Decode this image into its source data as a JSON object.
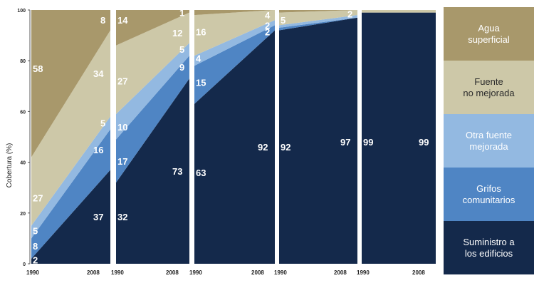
{
  "chart_data": {
    "type": "area",
    "stacked": true,
    "ylabel": "Cobertura (%)",
    "ylim": [
      0,
      100
    ],
    "yticks": [
      "0",
      "20",
      "40",
      "60",
      "80",
      "100"
    ],
    "panels": [
      {
        "x": [
          "1990",
          "2008"
        ],
        "series": {
          "edificios": [
            2,
            37
          ],
          "grifos": [
            8,
            16
          ],
          "otra": [
            5,
            5
          ],
          "no_mejorada": [
            27,
            34
          ],
          "superficial": [
            58,
            8
          ]
        }
      },
      {
        "x": [
          "1990",
          "2008"
        ],
        "series": {
          "edificios": [
            32,
            73
          ],
          "grifos": [
            17,
            9
          ],
          "otra": [
            10,
            5
          ],
          "no_mejorada": [
            27,
            12
          ],
          "superficial": [
            14,
            1
          ]
        }
      },
      {
        "x": [
          "1990",
          "2008"
        ],
        "series": {
          "edificios": [
            63,
            92
          ],
          "grifos": [
            15,
            2
          ],
          "otra": [
            4,
            2
          ],
          "no_mejorada": [
            16,
            4
          ],
          "superficial": [
            2,
            0
          ]
        }
      },
      {
        "x": [
          "1990",
          "2008"
        ],
        "series": {
          "edificios": [
            92,
            97
          ],
          "grifos": [
            1,
            0
          ],
          "otra": [
            1,
            1
          ],
          "no_mejorada": [
            5,
            2
          ],
          "superficial": [
            1,
            0
          ]
        }
      },
      {
        "x": [
          "1990",
          "2008"
        ],
        "series": {
          "edificios": [
            99,
            99
          ],
          "grifos": [
            0,
            0
          ],
          "otra": [
            0,
            0
          ],
          "no_mejorada": [
            1,
            1
          ],
          "superficial": [
            0,
            0
          ]
        }
      }
    ],
    "labels": [
      {
        "panel": 0,
        "side": "start",
        "value": "2",
        "y": 1.5
      },
      {
        "panel": 0,
        "side": "start",
        "value": "8",
        "y": 7
      },
      {
        "panel": 0,
        "side": "start",
        "value": "5",
        "y": 13
      },
      {
        "panel": 0,
        "side": "start",
        "value": "27",
        "y": 26
      },
      {
        "panel": 0,
        "side": "start",
        "value": "58",
        "y": 77
      },
      {
        "panel": 0,
        "side": "end",
        "value": "37",
        "y": 18.5
      },
      {
        "panel": 0,
        "side": "end",
        "value": "16",
        "y": 45
      },
      {
        "panel": 0,
        "side": "end",
        "value": "5",
        "y": 55.5
      },
      {
        "panel": 0,
        "side": "end",
        "value": "34",
        "y": 75
      },
      {
        "panel": 0,
        "side": "end",
        "value": "8",
        "y": 96
      },
      {
        "panel": 1,
        "side": "start",
        "value": "32",
        "y": 18.5
      },
      {
        "panel": 1,
        "side": "start",
        "value": "17",
        "y": 40.5
      },
      {
        "panel": 1,
        "side": "start",
        "value": "10",
        "y": 54
      },
      {
        "panel": 1,
        "side": "start",
        "value": "27",
        "y": 72
      },
      {
        "panel": 1,
        "side": "start",
        "value": "14",
        "y": 96
      },
      {
        "panel": 1,
        "side": "end",
        "value": "73",
        "y": 36.5
      },
      {
        "panel": 1,
        "side": "end",
        "value": "9",
        "y": 77.5
      },
      {
        "panel": 1,
        "side": "end",
        "value": "5",
        "y": 84.5
      },
      {
        "panel": 1,
        "side": "end",
        "value": "12",
        "y": 91
      },
      {
        "panel": 1,
        "side": "end",
        "value": "1",
        "y": 99
      },
      {
        "panel": 2,
        "side": "start",
        "value": "63",
        "y": 36
      },
      {
        "panel": 2,
        "side": "start",
        "value": "15",
        "y": 71.5
      },
      {
        "panel": 2,
        "side": "start",
        "value": "4",
        "y": 81
      },
      {
        "panel": 2,
        "side": "start",
        "value": "16",
        "y": 91.5
      },
      {
        "panel": 2,
        "side": "end",
        "value": "92",
        "y": 46
      },
      {
        "panel": 2,
        "side": "end",
        "value": "2",
        "y": 91.5
      },
      {
        "panel": 2,
        "side": "end",
        "value": "2",
        "y": 94
      },
      {
        "panel": 2,
        "side": "end",
        "value": "4",
        "y": 98
      },
      {
        "panel": 3,
        "side": "start",
        "value": "92",
        "y": 46
      },
      {
        "panel": 3,
        "side": "start",
        "value": "5",
        "y": 96
      },
      {
        "panel": 3,
        "side": "end",
        "value": "97",
        "y": 48
      },
      {
        "panel": 3,
        "side": "end",
        "value": "2",
        "y": 98.5
      },
      {
        "panel": 4,
        "side": "start",
        "value": "99",
        "y": 48
      },
      {
        "panel": 4,
        "side": "end",
        "value": "99",
        "y": 48
      }
    ],
    "legend": [
      {
        "key": "superficial",
        "label": [
          "Agua",
          "superficial"
        ]
      },
      {
        "key": "no_mejorada",
        "label": [
          "Fuente",
          "no mejorada"
        ]
      },
      {
        "key": "otra",
        "label": [
          "Otra fuente",
          "mejorada"
        ]
      },
      {
        "key": "grifos",
        "label": [
          "Grifos",
          "comunitarios"
        ]
      },
      {
        "key": "edificios",
        "label": [
          "Suministro a",
          "los edificios"
        ]
      }
    ],
    "colors": {
      "edificios": "#14294b",
      "grifos": "#4f85c4",
      "otra": "#93b9e1",
      "no_mejorada": "#cdc8a8",
      "superficial": "#a8986b"
    }
  }
}
